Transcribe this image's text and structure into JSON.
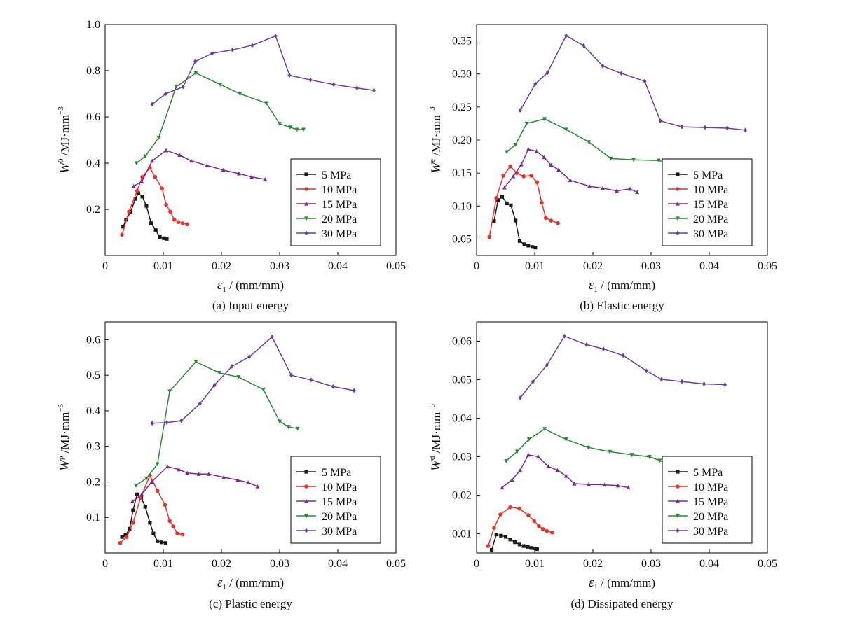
{
  "series_styles": [
    {
      "name": "5 MPa",
      "color": "#1a1a1a",
      "marker": "square"
    },
    {
      "name": "10 MPa",
      "color": "#e8312a",
      "marker": "circle"
    },
    {
      "name": "15 MPa",
      "color": "#7b2d8e",
      "marker": "triangle-up"
    },
    {
      "name": "20 MPa",
      "color": "#2a8a35",
      "marker": "triangle-down"
    },
    {
      "name": "30 MPa",
      "color": "#6e3b9e",
      "marker": "diamond"
    }
  ],
  "chart_data": [
    {
      "type": "line",
      "panel_id": "a",
      "caption": "(a) Input energy",
      "ylabel_main": "W",
      "ylabel_sup": "0",
      "ylabel_unit": " /MJ·mm",
      "ylabel_unit_sup": "−3",
      "xlabel_main": "ε",
      "xlabel_sub": "1",
      "xlabel_unit": " / (mm/mm)",
      "xlim": [
        0,
        0.05
      ],
      "ylim": [
        0,
        1.0
      ],
      "xticks": [
        0,
        0.01,
        0.02,
        0.03,
        0.04,
        0.05
      ],
      "xtick_labels": [
        "0",
        "0.01",
        "0.02",
        "0.03",
        "0.04",
        "0.05"
      ],
      "yticks": [
        0.2,
        0.4,
        0.6,
        0.8,
        1.0
      ],
      "ytick_labels": [
        "0.2",
        "0.4",
        "0.6",
        "0.8",
        "1.0"
      ],
      "legend_loc": "lower-right",
      "series": [
        {
          "name": "5 MPa",
          "x": [
            0.0031,
            0.0036,
            0.0044,
            0.0052,
            0.0057,
            0.0064,
            0.0071,
            0.0079,
            0.0087,
            0.0094,
            0.0101,
            0.0106
          ],
          "y": [
            0.125,
            0.155,
            0.19,
            0.245,
            0.27,
            0.255,
            0.215,
            0.14,
            0.11,
            0.08,
            0.075,
            0.072
          ]
        },
        {
          "name": "10 MPa",
          "x": [
            0.0029,
            0.0041,
            0.0055,
            0.0064,
            0.0077,
            0.0086,
            0.0098,
            0.0105,
            0.0112,
            0.0119,
            0.0126,
            0.0133,
            0.0141
          ],
          "y": [
            0.09,
            0.19,
            0.28,
            0.34,
            0.38,
            0.34,
            0.29,
            0.22,
            0.19,
            0.155,
            0.145,
            0.14,
            0.135
          ]
        },
        {
          "name": "15 MPa",
          "x": [
            0.0049,
            0.0063,
            0.0081,
            0.0105,
            0.0128,
            0.0148,
            0.0175,
            0.0203,
            0.023,
            0.0252,
            0.0275
          ],
          "y": [
            0.3,
            0.32,
            0.41,
            0.455,
            0.435,
            0.41,
            0.39,
            0.37,
            0.355,
            0.34,
            0.33
          ]
        },
        {
          "name": "20 MPa",
          "x": [
            0.0054,
            0.0069,
            0.0092,
            0.0122,
            0.0156,
            0.0198,
            0.0232,
            0.0277,
            0.03,
            0.0318,
            0.033,
            0.0341
          ],
          "y": [
            0.4,
            0.43,
            0.51,
            0.73,
            0.79,
            0.74,
            0.7,
            0.66,
            0.57,
            0.555,
            0.545,
            0.545
          ]
        },
        {
          "name": "30 MPa",
          "x": [
            0.0081,
            0.0104,
            0.0134,
            0.0155,
            0.0184,
            0.0219,
            0.0253,
            0.0293,
            0.0317,
            0.0353,
            0.0393,
            0.0433,
            0.0462
          ],
          "y": [
            0.655,
            0.7,
            0.73,
            0.84,
            0.875,
            0.89,
            0.91,
            0.95,
            0.78,
            0.76,
            0.74,
            0.725,
            0.715
          ]
        }
      ]
    },
    {
      "type": "line",
      "panel_id": "b",
      "caption": "(b) Elastic energy",
      "ylabel_main": "W",
      "ylabel_sup": "e",
      "ylabel_unit": " /MJ·mm",
      "ylabel_unit_sup": "−3",
      "xlabel_main": "ε",
      "xlabel_sub": "1",
      "xlabel_unit": " / (mm/mm)",
      "xlim": [
        0,
        0.05
      ],
      "ylim": [
        0.025,
        0.375
      ],
      "xticks": [
        0,
        0.01,
        0.02,
        0.03,
        0.04,
        0.05
      ],
      "xtick_labels": [
        "0",
        "0.01",
        "0.02",
        "0.03",
        "0.04",
        "0.05"
      ],
      "yticks": [
        0.05,
        0.1,
        0.15,
        0.2,
        0.25,
        0.3,
        0.35
      ],
      "ytick_labels": [
        "0.05",
        "0.10",
        "0.15",
        "0.20",
        "0.25",
        "0.30",
        "0.35"
      ],
      "legend_loc": "lower-right",
      "series": [
        {
          "name": "5 MPa",
          "x": [
            0.003,
            0.0037,
            0.0044,
            0.0052,
            0.0059,
            0.0067,
            0.0074,
            0.0082,
            0.0089,
            0.0096,
            0.0101
          ],
          "y": [
            0.077,
            0.109,
            0.114,
            0.104,
            0.101,
            0.078,
            0.047,
            0.042,
            0.04,
            0.038,
            0.037
          ]
        },
        {
          "name": "10 MPa",
          "x": [
            0.0022,
            0.0034,
            0.0046,
            0.0058,
            0.0069,
            0.0081,
            0.0094,
            0.0104,
            0.0112,
            0.0119,
            0.0128,
            0.014
          ],
          "y": [
            0.053,
            0.112,
            0.146,
            0.16,
            0.15,
            0.145,
            0.146,
            0.136,
            0.105,
            0.082,
            0.078,
            0.074
          ]
        },
        {
          "name": "15 MPa",
          "x": [
            0.0048,
            0.0063,
            0.0077,
            0.0089,
            0.0103,
            0.0116,
            0.0128,
            0.0141,
            0.0161,
            0.0194,
            0.0217,
            0.0241,
            0.0264,
            0.0276
          ],
          "y": [
            0.128,
            0.145,
            0.163,
            0.186,
            0.183,
            0.174,
            0.162,
            0.155,
            0.139,
            0.13,
            0.127,
            0.123,
            0.126,
            0.121
          ]
        },
        {
          "name": "20 MPa",
          "x": [
            0.0052,
            0.0067,
            0.0086,
            0.0117,
            0.0154,
            0.0193,
            0.0231,
            0.027,
            0.0313,
            0.033,
            0.0339
          ],
          "y": [
            0.182,
            0.193,
            0.225,
            0.232,
            0.216,
            0.197,
            0.172,
            0.17,
            0.169,
            0.165,
            0.163
          ]
        },
        {
          "name": "30 MPa",
          "x": [
            0.0075,
            0.0101,
            0.0122,
            0.0154,
            0.0184,
            0.0217,
            0.0249,
            0.0289,
            0.0316,
            0.0353,
            0.0393,
            0.0431,
            0.0462
          ],
          "y": [
            0.245,
            0.285,
            0.302,
            0.358,
            0.343,
            0.312,
            0.301,
            0.289,
            0.229,
            0.22,
            0.219,
            0.218,
            0.215
          ]
        }
      ]
    },
    {
      "type": "line",
      "panel_id": "c",
      "caption": "(c) Plastic energy",
      "ylabel_main": "W",
      "ylabel_sup": "p",
      "ylabel_unit": " /MJ·mm",
      "ylabel_unit_sup": "−3",
      "xlabel_main": "ε",
      "xlabel_sub": "1",
      "xlabel_unit": " / (mm/mm)",
      "xlim": [
        0,
        0.05
      ],
      "ylim": [
        0,
        0.65
      ],
      "xticks": [
        0,
        0.01,
        0.02,
        0.03,
        0.04,
        0.05
      ],
      "xtick_labels": [
        "0",
        "0.01",
        "0.02",
        "0.03",
        "0.04",
        "0.05"
      ],
      "yticks": [
        0.1,
        0.2,
        0.3,
        0.4,
        0.5,
        0.6
      ],
      "ytick_labels": [
        "0.1",
        "0.2",
        "0.3",
        "0.4",
        "0.5",
        "0.6"
      ],
      "legend_loc": "lower-right",
      "series": [
        {
          "name": "5 MPa",
          "x": [
            0.0029,
            0.0035,
            0.0042,
            0.0048,
            0.0055,
            0.0062,
            0.0069,
            0.0077,
            0.0083,
            0.009,
            0.0097,
            0.0104
          ],
          "y": [
            0.045,
            0.05,
            0.068,
            0.12,
            0.165,
            0.155,
            0.13,
            0.085,
            0.055,
            0.033,
            0.03,
            0.028
          ]
        },
        {
          "name": "10 MPa",
          "x": [
            0.0026,
            0.0037,
            0.0048,
            0.0061,
            0.0077,
            0.009,
            0.0103,
            0.0111,
            0.0117,
            0.0124,
            0.0133
          ],
          "y": [
            0.028,
            0.045,
            0.085,
            0.155,
            0.218,
            0.175,
            0.135,
            0.09,
            0.075,
            0.055,
            0.052
          ]
        },
        {
          "name": "15 MPa",
          "x": [
            0.0047,
            0.0063,
            0.008,
            0.0107,
            0.0127,
            0.0141,
            0.0161,
            0.0178,
            0.0204,
            0.0228,
            0.0246,
            0.0262
          ],
          "y": [
            0.145,
            0.165,
            0.2,
            0.243,
            0.235,
            0.225,
            0.222,
            0.222,
            0.213,
            0.205,
            0.198,
            0.187
          ]
        },
        {
          "name": "20 MPa",
          "x": [
            0.0053,
            0.0071,
            0.009,
            0.0111,
            0.0156,
            0.0196,
            0.0229,
            0.0272,
            0.03,
            0.0315,
            0.0331
          ],
          "y": [
            0.19,
            0.21,
            0.25,
            0.455,
            0.538,
            0.507,
            0.495,
            0.46,
            0.37,
            0.355,
            0.35
          ]
        },
        {
          "name": "30 MPa",
          "x": [
            0.0081,
            0.0106,
            0.0131,
            0.0163,
            0.0188,
            0.0218,
            0.0248,
            0.0287,
            0.032,
            0.0354,
            0.0392,
            0.0428
          ],
          "y": [
            0.365,
            0.367,
            0.372,
            0.42,
            0.472,
            0.525,
            0.552,
            0.608,
            0.5,
            0.487,
            0.468,
            0.457
          ]
        }
      ]
    },
    {
      "type": "line",
      "panel_id": "d",
      "caption": "(d) Dissipated energy",
      "ylabel_main": "W",
      "ylabel_sup": "d",
      "ylabel_unit": " /MJ·mm",
      "ylabel_unit_sup": "−3",
      "xlabel_main": "ε",
      "xlabel_sub": "1",
      "xlabel_unit": " / (mm/mm)",
      "xlim": [
        0,
        0.05
      ],
      "ylim": [
        0.005,
        0.065
      ],
      "xticks": [
        0,
        0.01,
        0.02,
        0.03,
        0.04,
        0.05
      ],
      "xtick_labels": [
        "0",
        "0.01",
        "0.02",
        "0.03",
        "0.04",
        "0.05"
      ],
      "yticks": [
        0.01,
        0.02,
        0.03,
        0.04,
        0.05,
        0.06
      ],
      "ytick_labels": [
        "0.01",
        "0.02",
        "0.03",
        "0.04",
        "0.05",
        "0.06"
      ],
      "legend_loc": "lower-right",
      "series": [
        {
          "name": "5 MPa",
          "x": [
            0.0026,
            0.0034,
            0.0042,
            0.005,
            0.0058,
            0.0066,
            0.0074,
            0.0081,
            0.0088,
            0.0094,
            0.0099,
            0.0104
          ],
          "y": [
            0.0058,
            0.0098,
            0.0095,
            0.0092,
            0.0085,
            0.0078,
            0.0072,
            0.0068,
            0.0066,
            0.0063,
            0.0062,
            0.006
          ]
        },
        {
          "name": "10 MPa",
          "x": [
            0.002,
            0.003,
            0.0041,
            0.0058,
            0.0074,
            0.0089,
            0.0099,
            0.0107,
            0.0114,
            0.0121,
            0.013
          ],
          "y": [
            0.0068,
            0.0115,
            0.015,
            0.0169,
            0.0165,
            0.0148,
            0.0133,
            0.012,
            0.0112,
            0.0107,
            0.0103
          ]
        },
        {
          "name": "15 MPa",
          "x": [
            0.0044,
            0.0061,
            0.0075,
            0.0089,
            0.0106,
            0.0123,
            0.0139,
            0.0154,
            0.0168,
            0.0193,
            0.022,
            0.0243,
            0.0261
          ],
          "y": [
            0.022,
            0.024,
            0.0265,
            0.0305,
            0.03,
            0.0275,
            0.0265,
            0.025,
            0.023,
            0.0228,
            0.0227,
            0.0225,
            0.022
          ]
        },
        {
          "name": "20 MPa",
          "x": [
            0.0051,
            0.007,
            0.009,
            0.0117,
            0.0154,
            0.0192,
            0.0229,
            0.0267,
            0.0297,
            0.0315,
            0.0328
          ],
          "y": [
            0.0289,
            0.0314,
            0.0345,
            0.0372,
            0.0345,
            0.0324,
            0.0313,
            0.0305,
            0.03,
            0.029,
            0.028
          ]
        },
        {
          "name": "30 MPa",
          "x": [
            0.0075,
            0.0097,
            0.0121,
            0.0151,
            0.0189,
            0.0218,
            0.0252,
            0.0292,
            0.0318,
            0.0353,
            0.0391,
            0.0427
          ],
          "y": [
            0.0453,
            0.0495,
            0.0538,
            0.0613,
            0.0591,
            0.058,
            0.0563,
            0.0523,
            0.0501,
            0.0495,
            0.0489,
            0.0487
          ]
        }
      ]
    }
  ]
}
